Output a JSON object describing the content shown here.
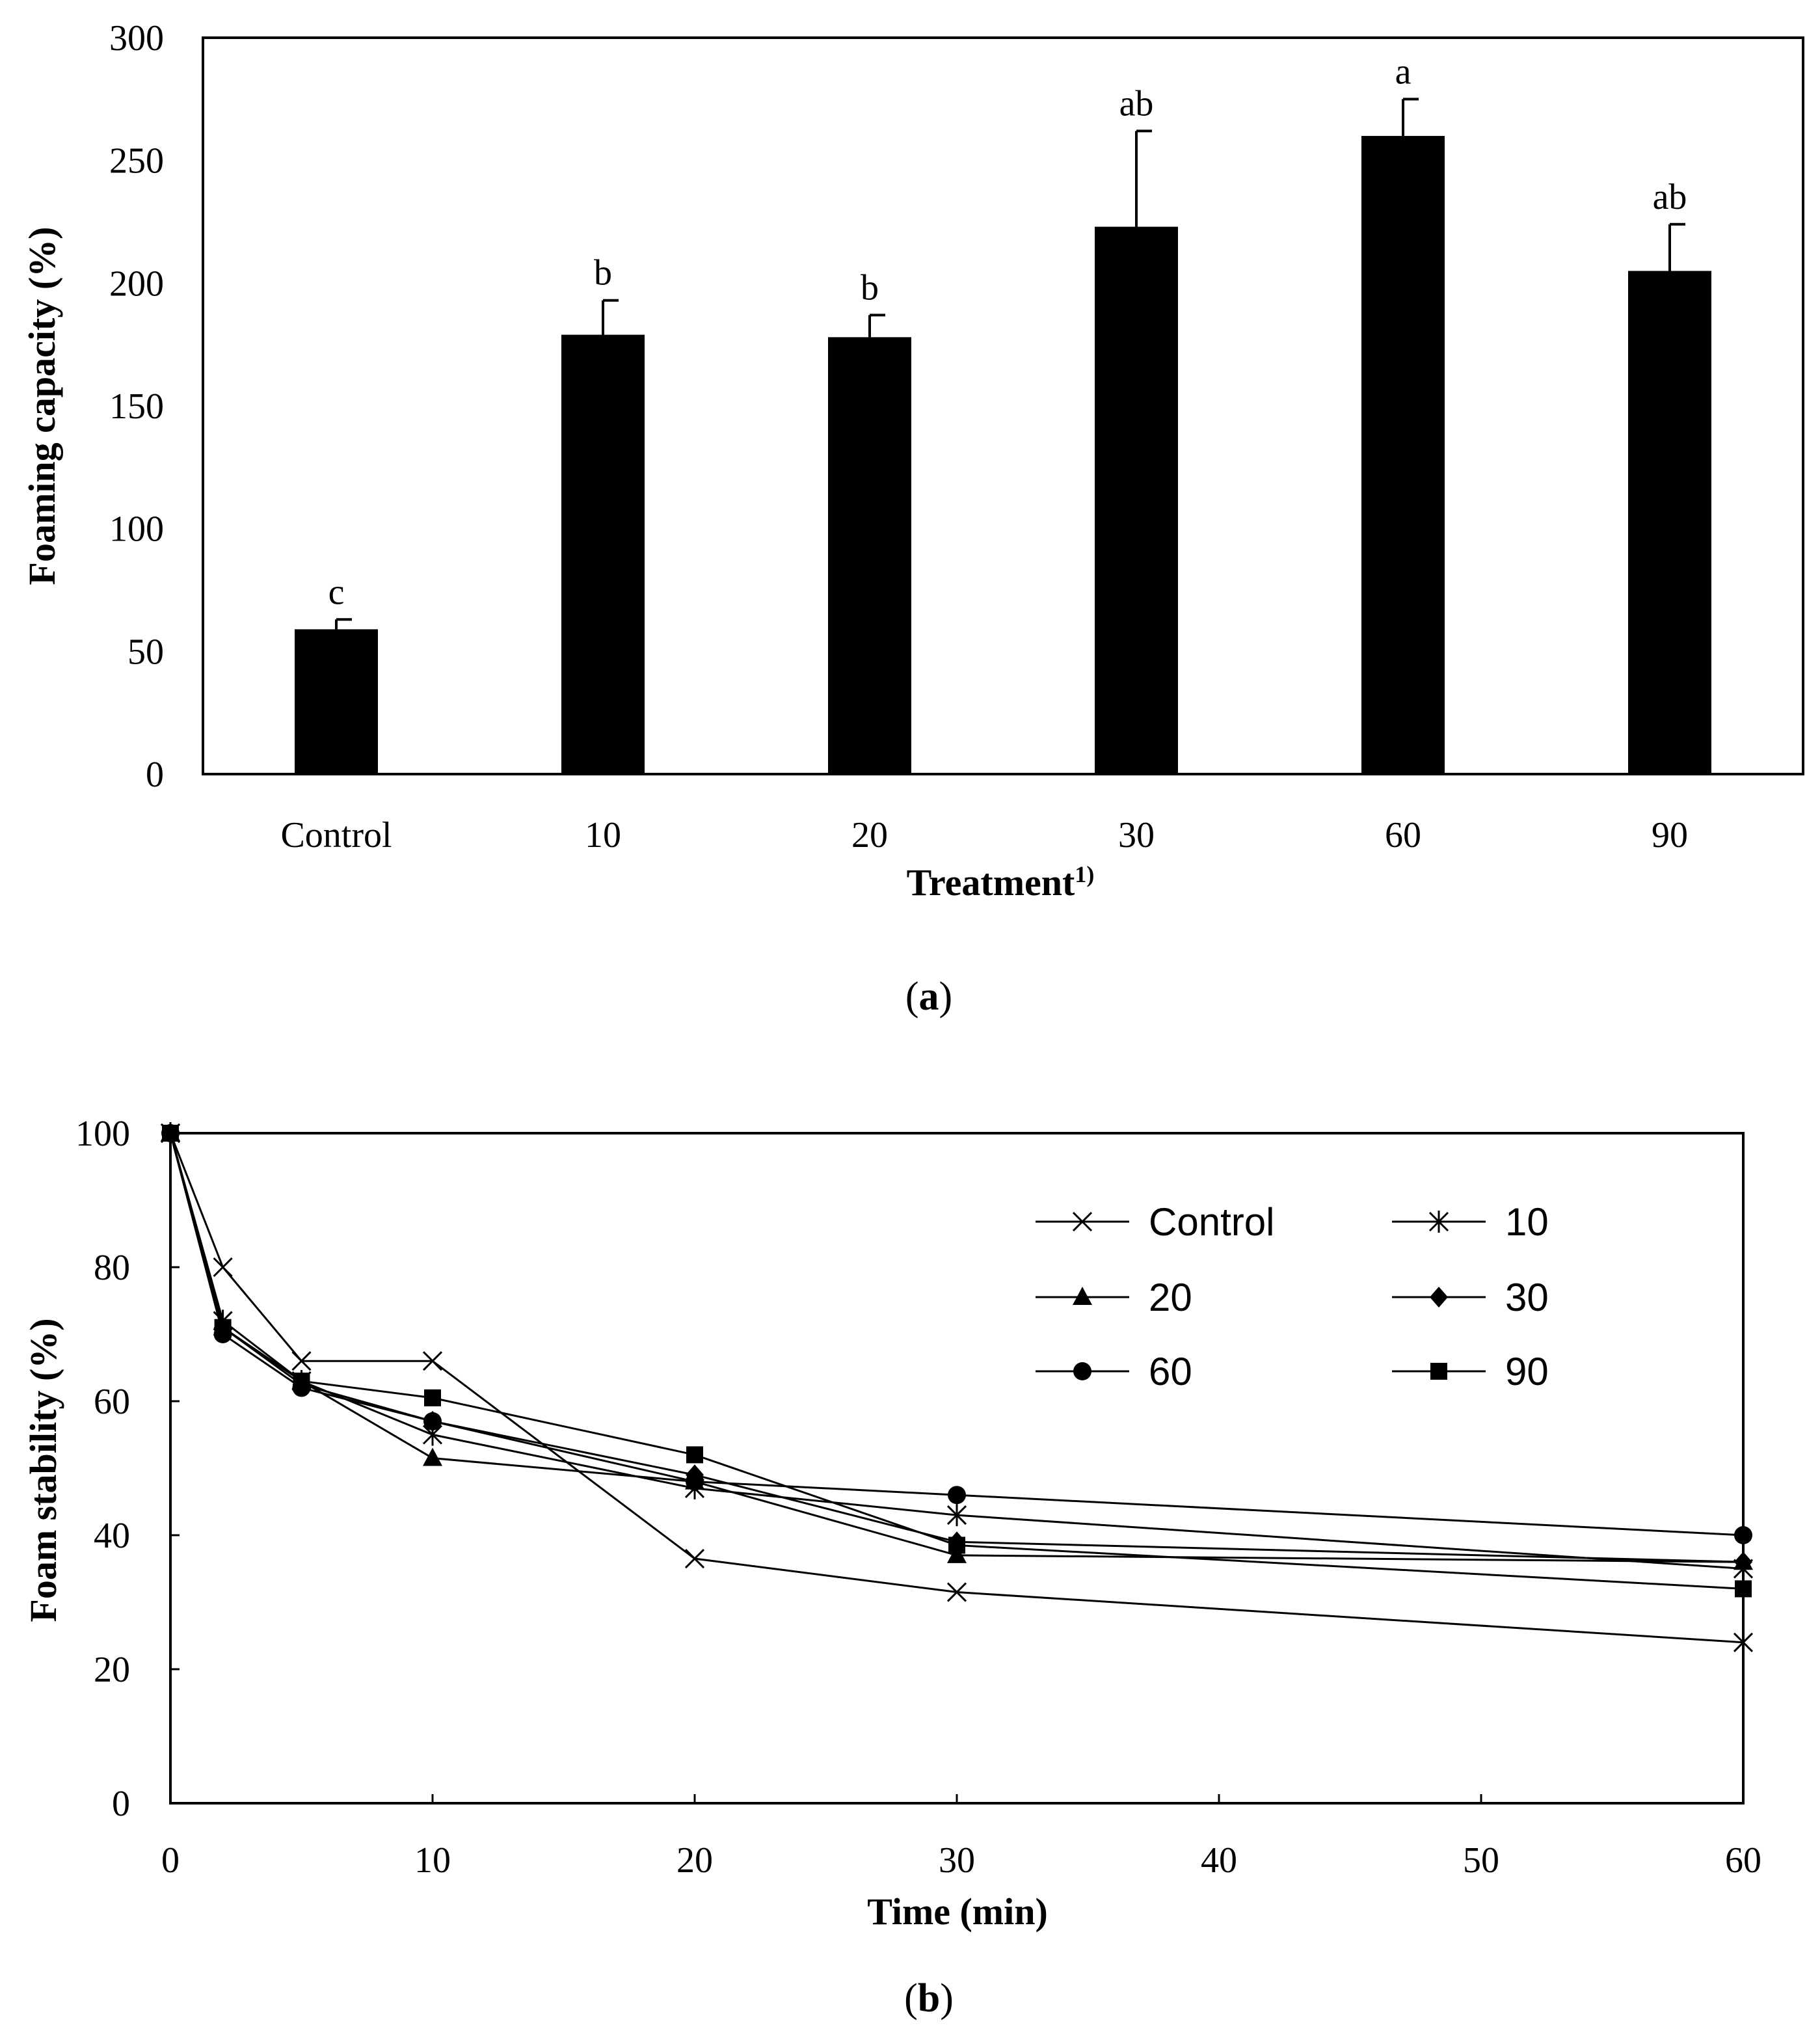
{
  "chart_data": [
    {
      "type": "bar",
      "caption_letter": "a",
      "categories": [
        "Control",
        "10",
        "20",
        "30",
        "60",
        "90"
      ],
      "values": [
        59,
        179,
        178,
        223,
        260,
        205
      ],
      "errors": [
        4,
        14,
        9,
        39,
        15,
        19
      ],
      "labels": [
        "c",
        "b",
        "b",
        "ab",
        "a",
        "ab"
      ],
      "xlabel": "Treatment",
      "xlabel_sup": "1)",
      "ylabel": "Foaming capacity (%)",
      "ylim": [
        0,
        300
      ],
      "yticks": [
        0,
        50,
        100,
        150,
        200,
        250,
        300
      ],
      "bar_color": "#000000",
      "grid": false
    },
    {
      "type": "line",
      "caption_letter": "b",
      "xlabel": "Time (min)",
      "ylabel": "Foam stability (%)",
      "xlim": [
        0,
        60
      ],
      "ylim": [
        0,
        100
      ],
      "xticks": [
        0,
        10,
        20,
        30,
        40,
        50,
        60
      ],
      "yticks": [
        0,
        20,
        40,
        60,
        80,
        100
      ],
      "x": [
        0,
        2,
        5,
        10,
        20,
        30,
        60
      ],
      "legend_position": "top-right",
      "grid": false,
      "series": [
        {
          "name": "Control",
          "marker": "x",
          "values": [
            100,
            80,
            66,
            66,
            36.5,
            31.5,
            24
          ]
        },
        {
          "name": "10",
          "marker": "star",
          "values": [
            100,
            72,
            63,
            55,
            47,
            43,
            35
          ]
        },
        {
          "name": "20",
          "marker": "triangle",
          "values": [
            100,
            71,
            63,
            51.5,
            48,
            37,
            36
          ]
        },
        {
          "name": "30",
          "marker": "diamond",
          "values": [
            100,
            71,
            62.5,
            57,
            49,
            39,
            36
          ]
        },
        {
          "name": "60",
          "marker": "circle",
          "values": [
            100,
            70,
            62,
            57,
            48,
            46,
            40
          ]
        },
        {
          "name": "90",
          "marker": "square",
          "values": [
            100,
            71,
            63,
            60.5,
            52,
            38.5,
            32
          ]
        }
      ]
    }
  ]
}
